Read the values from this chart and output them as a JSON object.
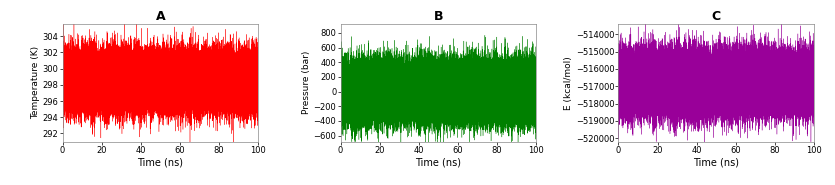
{
  "panel_A": {
    "title": "A",
    "xlabel": "Time (ns)",
    "ylabel": "Temperature (K)",
    "color": "#ff0000",
    "x_min": 0,
    "x_max": 100,
    "y_min": 291.0,
    "y_max": 305.5,
    "y_ticks": [
      292,
      294,
      296,
      298,
      300,
      302,
      304
    ],
    "x_ticks": [
      0,
      20,
      40,
      60,
      80,
      100
    ],
    "mean": 298.5,
    "std": 1.8,
    "n_points": 50000
  },
  "panel_B": {
    "title": "B",
    "xlabel": "Time (ns)",
    "ylabel": "Pressure (bar)",
    "color": "#008000",
    "x_min": 0,
    "x_max": 100,
    "y_min": -680,
    "y_max": 920,
    "y_ticks": [
      -600,
      -400,
      -200,
      0,
      200,
      400,
      600,
      800
    ],
    "x_ticks": [
      0,
      20,
      40,
      60,
      80,
      100
    ],
    "mean": 1.0,
    "std": 200.0,
    "n_points": 50000
  },
  "panel_C": {
    "title": "C",
    "xlabel": "Time (ns)",
    "ylabel": "E (kcal/mol)",
    "color": "#990099",
    "x_min": 0,
    "x_max": 100,
    "y_min": -520200,
    "y_max": -513400,
    "y_ticks": [
      -520000,
      -519000,
      -518000,
      -517000,
      -516000,
      -515000,
      -514000
    ],
    "x_ticks": [
      0,
      20,
      40,
      60,
      80,
      100
    ],
    "mean": -516800.0,
    "std": 900.0,
    "n_points": 50000
  },
  "fig_background": "#ffffff",
  "axes_background": "#ffffff"
}
